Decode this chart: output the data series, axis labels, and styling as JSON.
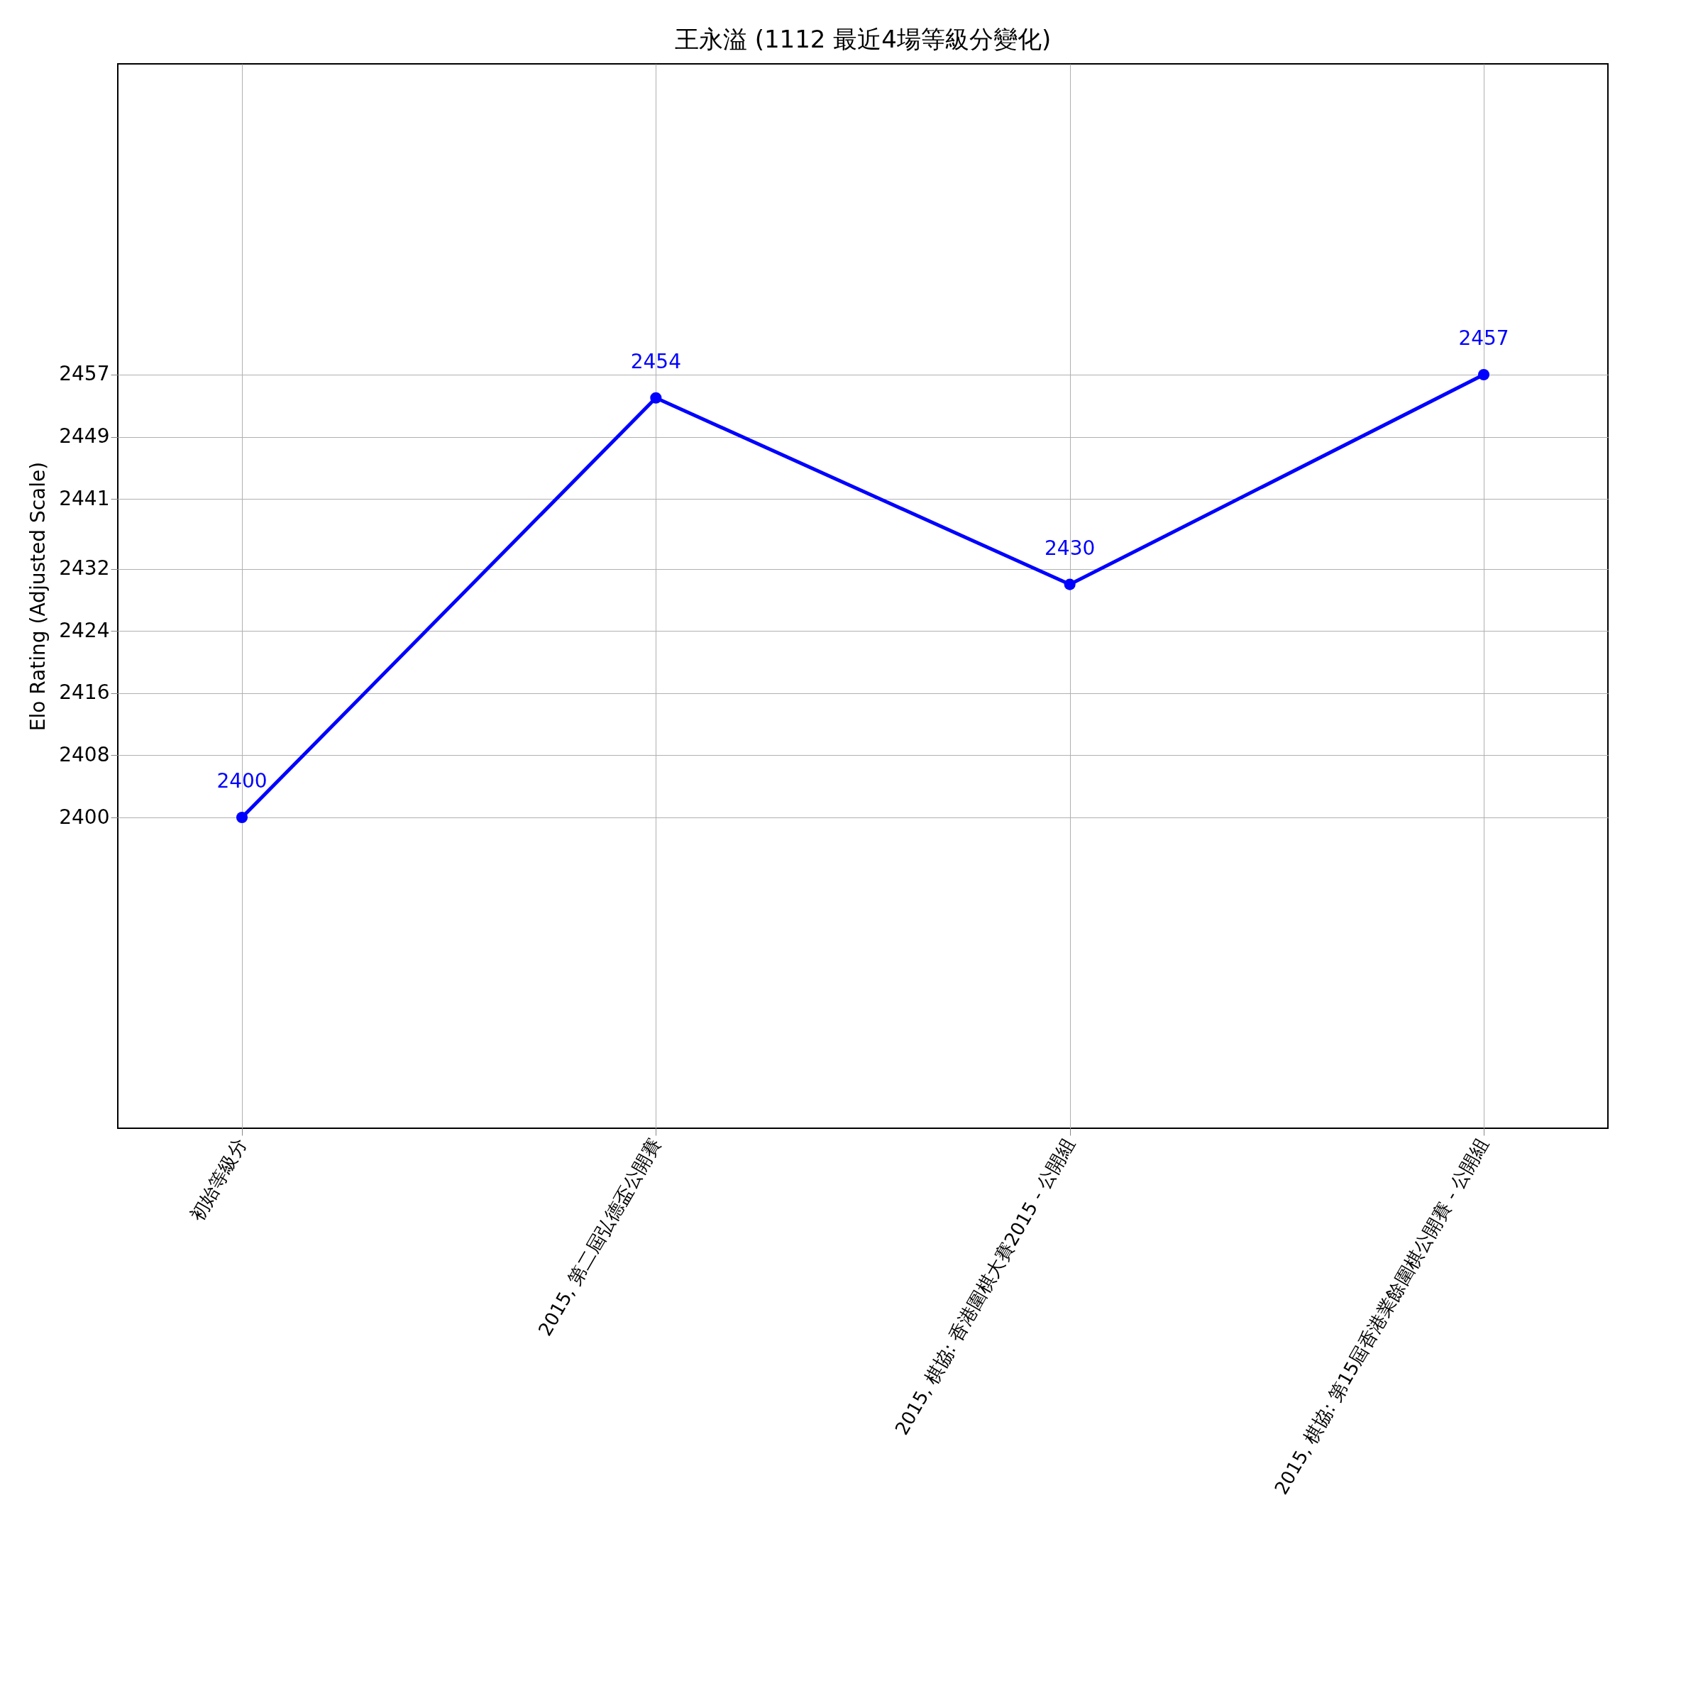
{
  "chart_data": {
    "type": "line",
    "title": "王永溢 (1112 最近4場等級分變化)",
    "ylabel": "Elo Rating (Adjusted Scale)",
    "categories": [
      "初始等級分",
      "2015, 第二屆弘德盃公開賽",
      "2015, 棋協: 香港圍棋大賽2015 - 公開組",
      "2015, 棋協: 第15屆香港業餘圍棋公開賽 - 公開組"
    ],
    "series": [
      {
        "color": "#0000ff",
        "values": [
          2400,
          2454,
          2430,
          2457
        ]
      }
    ],
    "ylim": [
      2360,
      2497
    ],
    "yticks": [
      2400,
      2408,
      2416,
      2424,
      2432,
      2441,
      2449,
      2457
    ],
    "grid": true,
    "marker": "circle",
    "line_style": "solid",
    "data_labels": true
  }
}
